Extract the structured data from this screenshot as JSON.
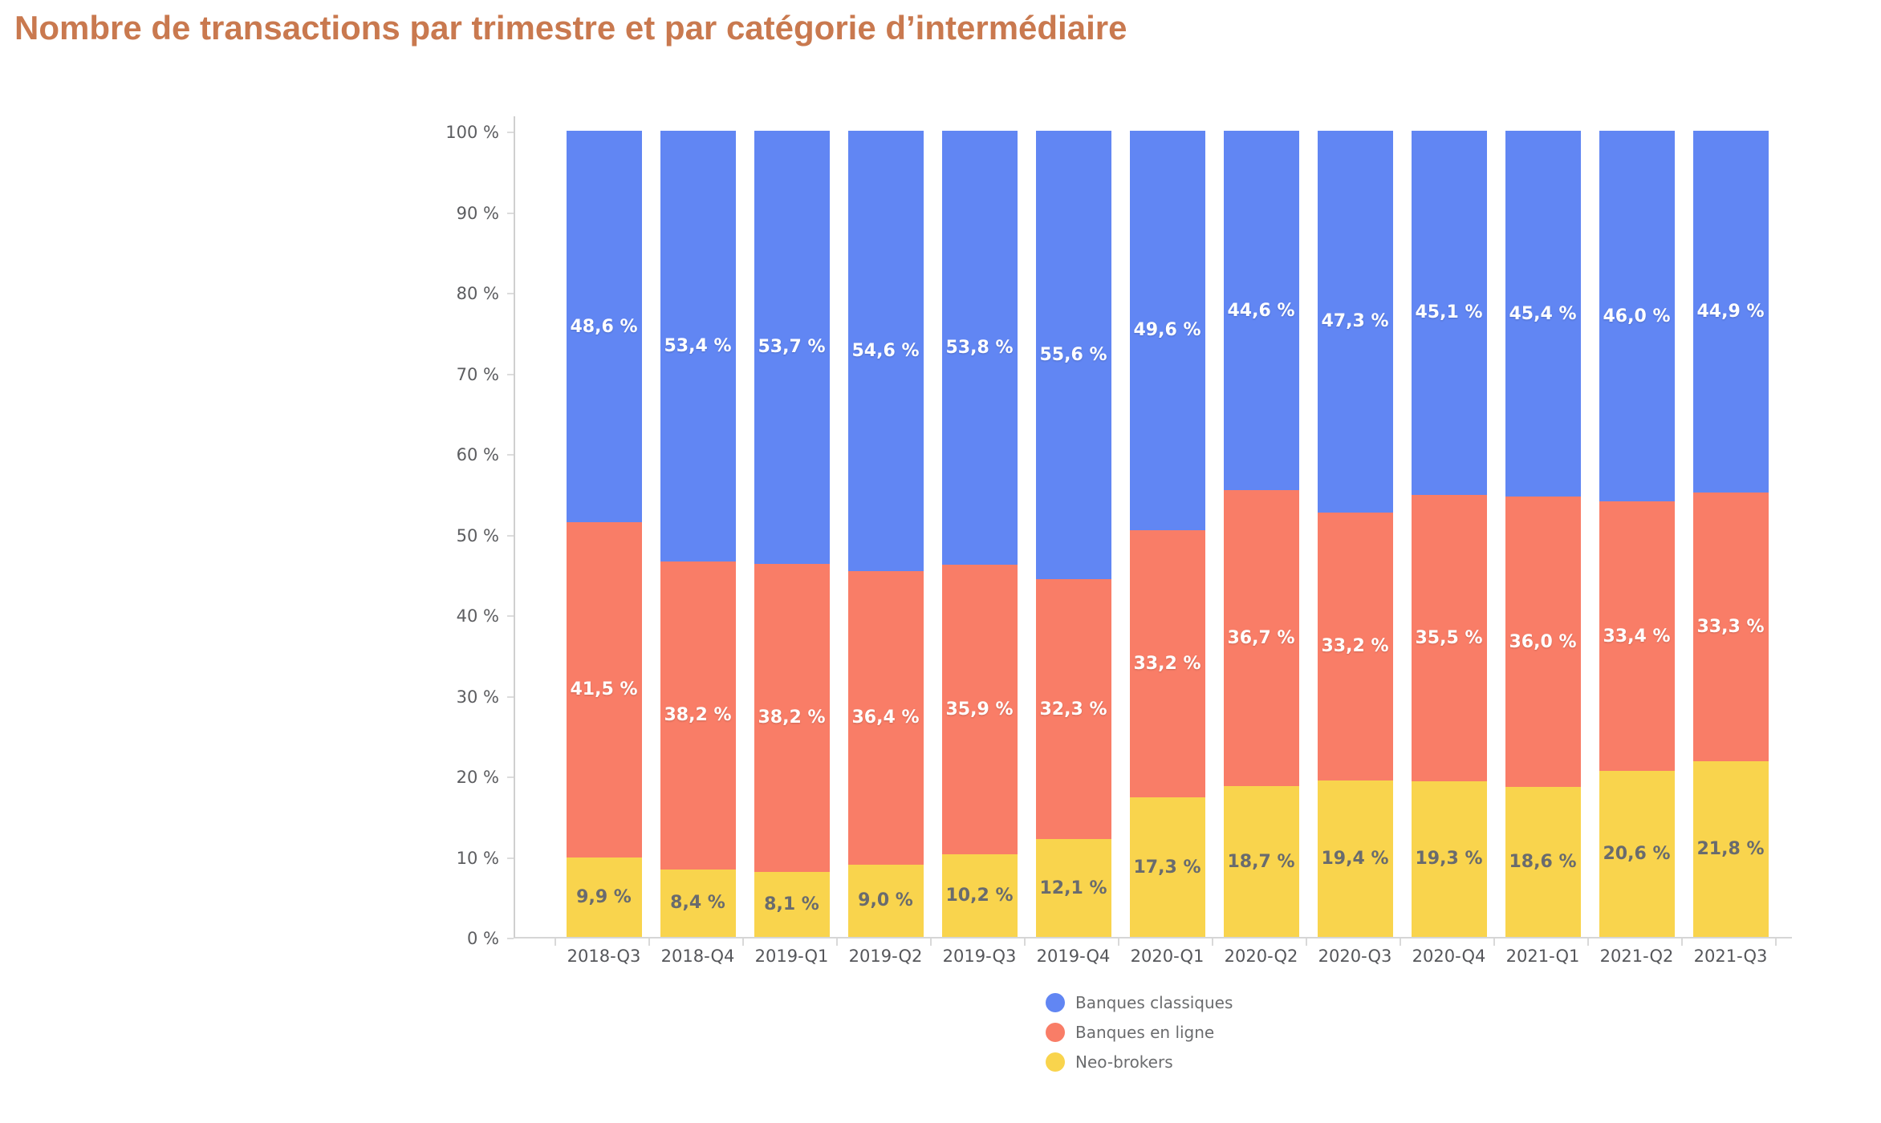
{
  "header": {
    "title_color": "#c9794f"
  },
  "axes": {
    "y_tick_labels_top_to_bottom": [
      "100 %",
      "90 %",
      "80 %",
      "70 %",
      "60 %",
      "50 %",
      "40 %",
      "30 %",
      "20 %",
      "10 %",
      "0 %"
    ]
  },
  "chart_data": {
    "type": "bar",
    "stacked": true,
    "percent_stacked": true,
    "title": "Nombre de transactions par trimestre et par catégorie d’intermédiaire",
    "xlabel": "",
    "ylabel": "",
    "ylim": [
      0,
      100
    ],
    "grid": false,
    "legend_position": "bottom",
    "categories": [
      "2018-Q3",
      "2018-Q4",
      "2019-Q1",
      "2019-Q2",
      "2019-Q3",
      "2019-Q4",
      "2020-Q1",
      "2020-Q2",
      "2020-Q3",
      "2020-Q4",
      "2021-Q1",
      "2021-Q2",
      "2021-Q3"
    ],
    "series": [
      {
        "name": "Banques classiques",
        "color": "#6186f3",
        "label_text_color": "#ffffff",
        "values": [
          48.6,
          53.4,
          53.7,
          54.6,
          53.8,
          55.6,
          49.6,
          44.6,
          47.3,
          45.1,
          45.4,
          46.0,
          44.9
        ],
        "labels": [
          "48,6 %",
          "53,4 %",
          "53,7 %",
          "54,6 %",
          "53,8 %",
          "55,6 %",
          "49,6 %",
          "44,6 %",
          "47,3 %",
          "45,1 %",
          "45,4 %",
          "46,0 %",
          "44,9 %"
        ]
      },
      {
        "name": "Banques en ligne",
        "color": "#f97d67",
        "label_text_color": "#ffffff",
        "values": [
          41.5,
          38.2,
          38.2,
          36.4,
          35.9,
          32.3,
          33.2,
          36.7,
          33.2,
          35.5,
          36.0,
          33.4,
          33.3
        ],
        "labels": [
          "41,5 %",
          "38,2 %",
          "38,2 %",
          "36,4 %",
          "35,9 %",
          "32,3 %",
          "33,2 %",
          "36,7 %",
          "33,2 %",
          "35,5 %",
          "36,0 %",
          "33,4 %",
          "33,3 %"
        ]
      },
      {
        "name": "Neo-brokers",
        "color": "#f9d44d",
        "label_text_color": "#696b6e",
        "values": [
          9.9,
          8.4,
          8.1,
          9.0,
          10.2,
          12.1,
          17.3,
          18.7,
          19.4,
          19.3,
          18.6,
          20.6,
          21.8
        ],
        "labels": [
          "9,9 %",
          "8,4 %",
          "8,1 %",
          "9,0 %",
          "10,2 %",
          "12,1 %",
          "17,3 %",
          "18,7 %",
          "19,4 %",
          "19,3 %",
          "18,6 %",
          "20,6 %",
          "21,8 %"
        ]
      }
    ]
  }
}
